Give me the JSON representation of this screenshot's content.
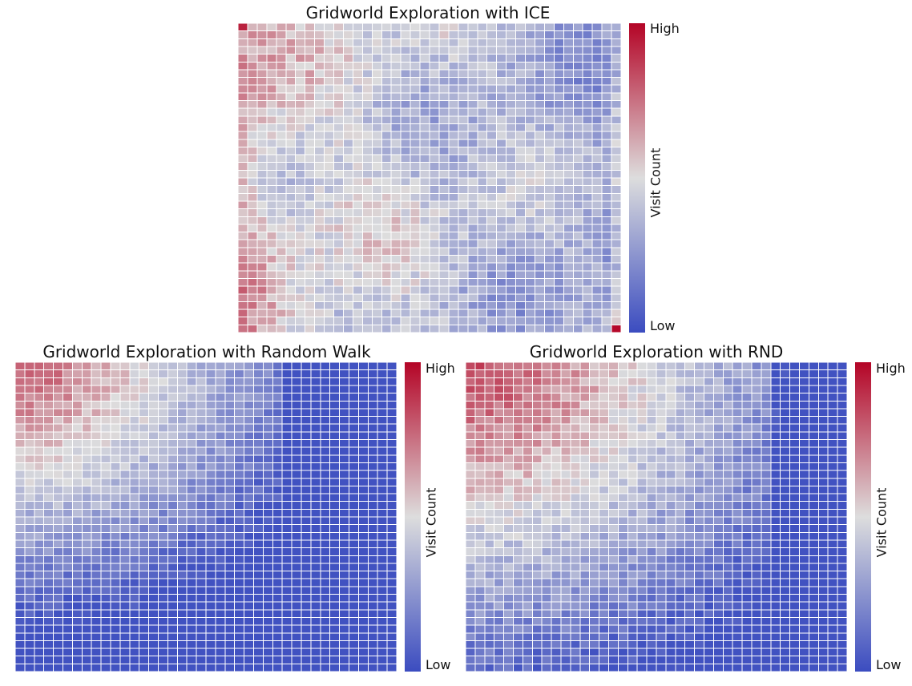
{
  "chart_data": [
    {
      "type": "heatmap",
      "title": "Gridworld Exploration with ICE",
      "grid_size": [
        40,
        40
      ],
      "colormap": "coolwarm",
      "colorbar": {
        "high_label": "High",
        "low_label": "Low",
        "axis_label": "Visit Count"
      },
      "pattern": "ice",
      "seed": 11
    },
    {
      "type": "heatmap",
      "title": "Gridworld Exploration with Random Walk",
      "grid_size": [
        40,
        40
      ],
      "colormap": "coolwarm",
      "colorbar": {
        "high_label": "High",
        "low_label": "Low",
        "axis_label": "Visit Count"
      },
      "pattern": "random_walk",
      "seed": 23
    },
    {
      "type": "heatmap",
      "title": "Gridworld Exploration with RND",
      "grid_size": [
        40,
        40
      ],
      "colormap": "coolwarm",
      "colorbar": {
        "high_label": "High",
        "low_label": "Low",
        "axis_label": "Visit Count"
      },
      "pattern": "rnd",
      "seed": 37
    }
  ],
  "colors": {
    "low": "#3b4cc0",
    "mid": "#dddddd",
    "high": "#b40426",
    "cell_border": "#ffffff"
  }
}
